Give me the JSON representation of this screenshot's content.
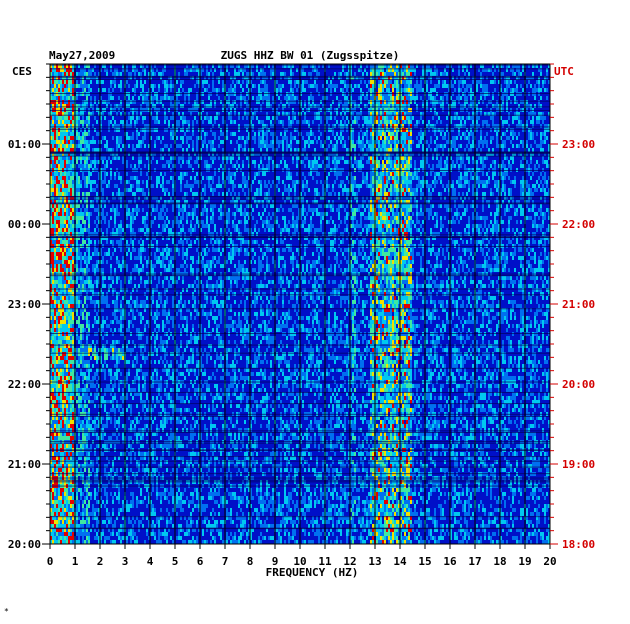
{
  "chart_data": {
    "type": "heatmap",
    "date": "May27,2009",
    "title": "ZUGS HHZ BW 01 (Zugsspitze)",
    "left_tz": "CES",
    "right_tz": "UTC",
    "xlabel": "FREQUENCY (HZ)",
    "xlim": [
      0,
      20
    ],
    "x_ticks": [
      "0",
      "1",
      "2",
      "3",
      "4",
      "5",
      "6",
      "7",
      "8",
      "9",
      "10",
      "11",
      "12",
      "13",
      "14",
      "15",
      "16",
      "17",
      "18",
      "19",
      "20"
    ],
    "left_ticks": [
      {
        "label": "01:00",
        "hours_before_end": 5
      },
      {
        "label": "00:00",
        "hours_before_end": 4
      },
      {
        "label": "23:00",
        "hours_before_end": 3
      },
      {
        "label": "22:00",
        "hours_before_end": 2
      },
      {
        "label": "21:00",
        "hours_before_end": 1
      },
      {
        "label": "20:00",
        "hours_before_end": 0
      }
    ],
    "right_ticks": [
      {
        "label": "23:00",
        "hours_before_end": 5
      },
      {
        "label": "22:00",
        "hours_before_end": 4
      },
      {
        "label": "21:00",
        "hours_before_end": 3
      },
      {
        "label": "20:00",
        "hours_before_end": 2
      },
      {
        "label": "19:00",
        "hours_before_end": 1
      },
      {
        "label": "18:00",
        "hours_before_end": 0
      }
    ],
    "span_hours": 6,
    "colors": {
      "background": "#0010c8",
      "text": "#000000",
      "utc_text": "#d40000",
      "grid": "#000000"
    },
    "bands_hz": [
      {
        "from": 0.0,
        "to": 0.9,
        "level": 0.85
      },
      {
        "from": 12.0,
        "to": 12.2,
        "level": 0.45
      },
      {
        "from": 12.8,
        "to": 14.4,
        "level": 0.7
      }
    ],
    "event": {
      "hours_before_end": 2.4,
      "from_hz": 0,
      "to_hz": 3,
      "level": 0.6
    }
  },
  "footnote": "*"
}
